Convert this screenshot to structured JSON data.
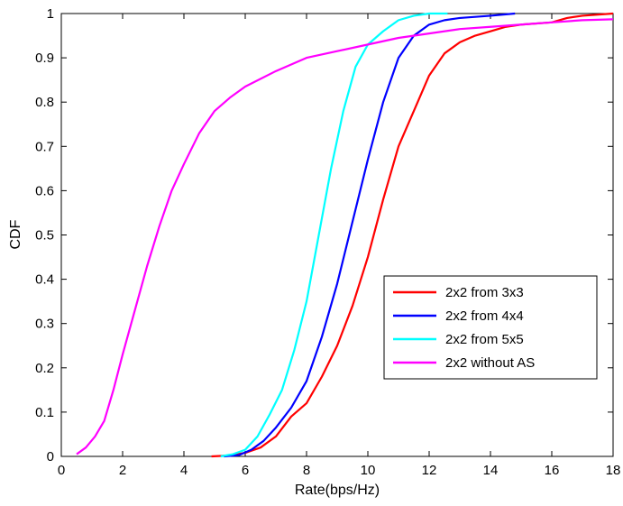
{
  "chart_data": {
    "type": "line",
    "title": "",
    "xlabel": "Rate(bps/Hz)",
    "ylabel": "CDF",
    "xlim": [
      0,
      18
    ],
    "ylim": [
      0,
      1
    ],
    "xticks": [
      0,
      2,
      4,
      6,
      8,
      10,
      12,
      14,
      16,
      18
    ],
    "yticks": [
      0,
      0.1,
      0.2,
      0.3,
      0.4,
      0.5,
      0.6,
      0.7,
      0.8,
      0.9,
      1
    ],
    "grid": false,
    "legend_position": "lower-right",
    "series": [
      {
        "name": "2x2 from 3x3",
        "color": "#ff0000",
        "points": [
          [
            4.9,
            0
          ],
          [
            5.5,
            0.002
          ],
          [
            6.0,
            0.008
          ],
          [
            6.5,
            0.02
          ],
          [
            7.0,
            0.045
          ],
          [
            7.5,
            0.09
          ],
          [
            8.0,
            0.12
          ],
          [
            8.5,
            0.18
          ],
          [
            9.0,
            0.25
          ],
          [
            9.5,
            0.34
          ],
          [
            10.0,
            0.45
          ],
          [
            10.5,
            0.58
          ],
          [
            11.0,
            0.7
          ],
          [
            11.5,
            0.78
          ],
          [
            12.0,
            0.86
          ],
          [
            12.5,
            0.91
          ],
          [
            13.0,
            0.935
          ],
          [
            13.5,
            0.95
          ],
          [
            14.0,
            0.96
          ],
          [
            14.5,
            0.97
          ],
          [
            15.0,
            0.975
          ],
          [
            16.0,
            0.98
          ],
          [
            16.5,
            0.99
          ],
          [
            17.0,
            0.995
          ],
          [
            18.0,
            1.0
          ]
        ]
      },
      {
        "name": "2x2 from 4x4",
        "color": "#0000ff",
        "points": [
          [
            5.3,
            0
          ],
          [
            5.8,
            0.003
          ],
          [
            6.2,
            0.015
          ],
          [
            6.6,
            0.035
          ],
          [
            7.0,
            0.065
          ],
          [
            7.5,
            0.11
          ],
          [
            8.0,
            0.17
          ],
          [
            8.5,
            0.27
          ],
          [
            9.0,
            0.39
          ],
          [
            9.5,
            0.53
          ],
          [
            10.0,
            0.67
          ],
          [
            10.5,
            0.8
          ],
          [
            11.0,
            0.9
          ],
          [
            11.5,
            0.95
          ],
          [
            12.0,
            0.975
          ],
          [
            12.5,
            0.985
          ],
          [
            13.0,
            0.99
          ],
          [
            14.0,
            0.995
          ],
          [
            14.8,
            1.0
          ]
        ]
      },
      {
        "name": "2x2 from 5x5",
        "color": "#00ffff",
        "points": [
          [
            5.2,
            0
          ],
          [
            5.6,
            0.005
          ],
          [
            6.0,
            0.015
          ],
          [
            6.4,
            0.045
          ],
          [
            6.8,
            0.095
          ],
          [
            7.2,
            0.15
          ],
          [
            7.6,
            0.24
          ],
          [
            8.0,
            0.35
          ],
          [
            8.4,
            0.5
          ],
          [
            8.8,
            0.65
          ],
          [
            9.2,
            0.78
          ],
          [
            9.6,
            0.88
          ],
          [
            10.0,
            0.93
          ],
          [
            10.5,
            0.96
          ],
          [
            11.0,
            0.985
          ],
          [
            11.5,
            0.995
          ],
          [
            12.0,
            1.0
          ],
          [
            12.6,
            1.0
          ]
        ]
      },
      {
        "name": "2x2 without AS",
        "color": "#ff00ff",
        "points": [
          [
            0.5,
            0.005
          ],
          [
            0.8,
            0.02
          ],
          [
            1.1,
            0.045
          ],
          [
            1.4,
            0.08
          ],
          [
            1.7,
            0.15
          ],
          [
            2.0,
            0.23
          ],
          [
            2.4,
            0.33
          ],
          [
            2.8,
            0.43
          ],
          [
            3.2,
            0.52
          ],
          [
            3.6,
            0.6
          ],
          [
            4.0,
            0.66
          ],
          [
            4.5,
            0.73
          ],
          [
            5.0,
            0.78
          ],
          [
            5.5,
            0.81
          ],
          [
            6.0,
            0.835
          ],
          [
            7.0,
            0.87
          ],
          [
            8.0,
            0.9
          ],
          [
            9.0,
            0.915
          ],
          [
            10.0,
            0.93
          ],
          [
            11.0,
            0.945
          ],
          [
            12.0,
            0.955
          ],
          [
            13.0,
            0.965
          ],
          [
            14.0,
            0.97
          ],
          [
            15.0,
            0.975
          ],
          [
            16.0,
            0.98
          ],
          [
            17.0,
            0.985
          ],
          [
            18.0,
            0.987
          ]
        ]
      }
    ]
  }
}
